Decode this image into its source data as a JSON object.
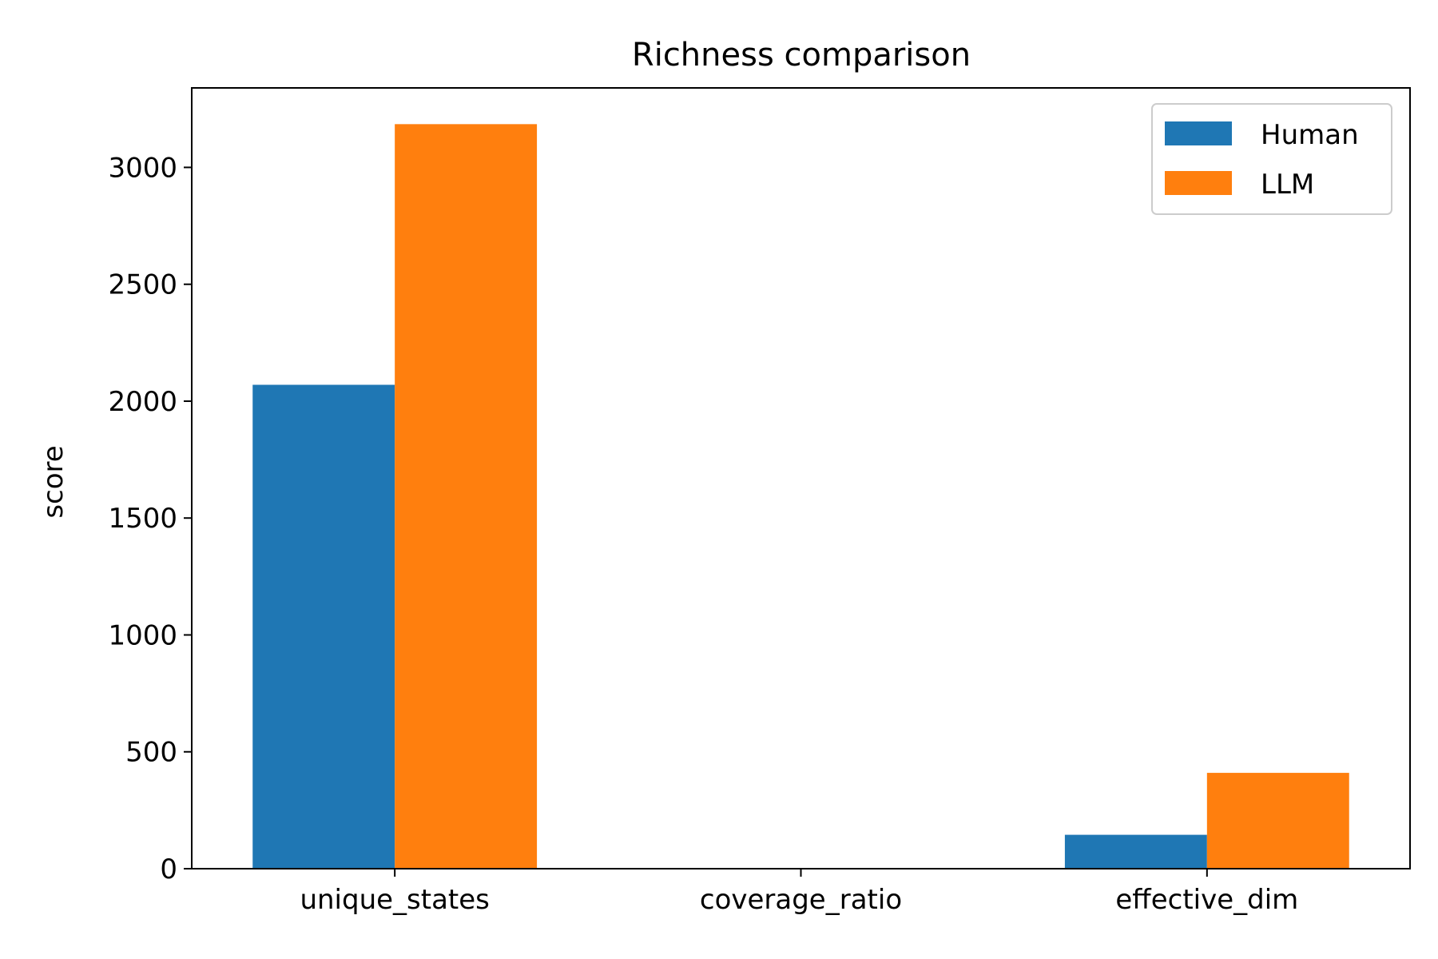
{
  "chart_data": {
    "type": "bar",
    "title": "Richness comparison",
    "xlabel": "",
    "ylabel": "score",
    "categories": [
      "unique_states",
      "coverage_ratio",
      "effective_dim"
    ],
    "series": [
      {
        "name": "Human",
        "color": "#1f77b4",
        "values": [
          2070,
          0.4,
          145
        ]
      },
      {
        "name": "LLM",
        "color": "#ff7f0e",
        "values": [
          3185,
          0.6,
          410
        ]
      }
    ],
    "ylim": [
      0,
      3340
    ],
    "yticks": [
      0,
      500,
      1000,
      1500,
      2000,
      2500,
      3000
    ],
    "grid": false,
    "legend_position": "top-right"
  }
}
